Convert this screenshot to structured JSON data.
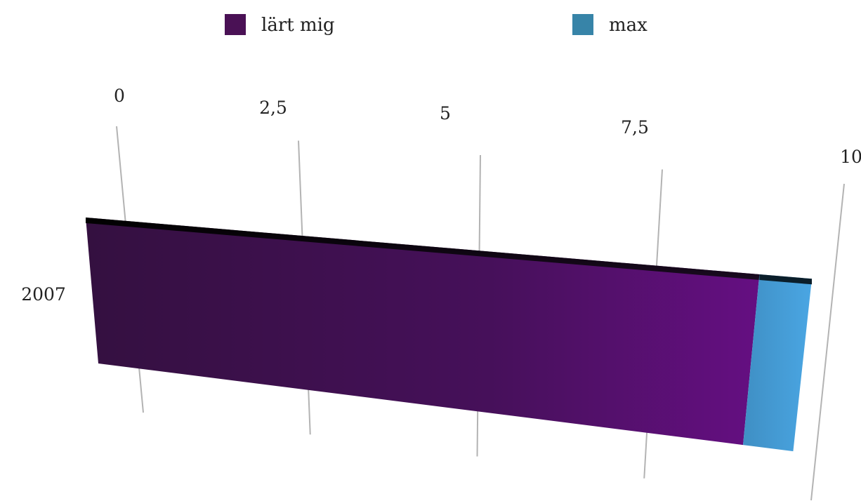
{
  "chart_data": {
    "type": "bar",
    "orientation": "horizontal",
    "categories": [
      "2007"
    ],
    "series": [
      {
        "name": "lärt mig",
        "values": [
          9.0
        ],
        "color": "#4a1155"
      },
      {
        "name": "max",
        "values": [
          0.7
        ],
        "color": "#3784a8"
      }
    ],
    "stacked": true,
    "xlim": [
      0,
      10
    ],
    "ticks": [
      {
        "value": 0,
        "label": "0"
      },
      {
        "value": 2.5,
        "label": "2,5"
      },
      {
        "value": 5,
        "label": "5"
      },
      {
        "value": 7.5,
        "label": "7,5"
      },
      {
        "value": 10,
        "label": "10"
      }
    ],
    "grid": true,
    "legend_position": "top",
    "title": "",
    "xlabel": "",
    "ylabel": ""
  }
}
